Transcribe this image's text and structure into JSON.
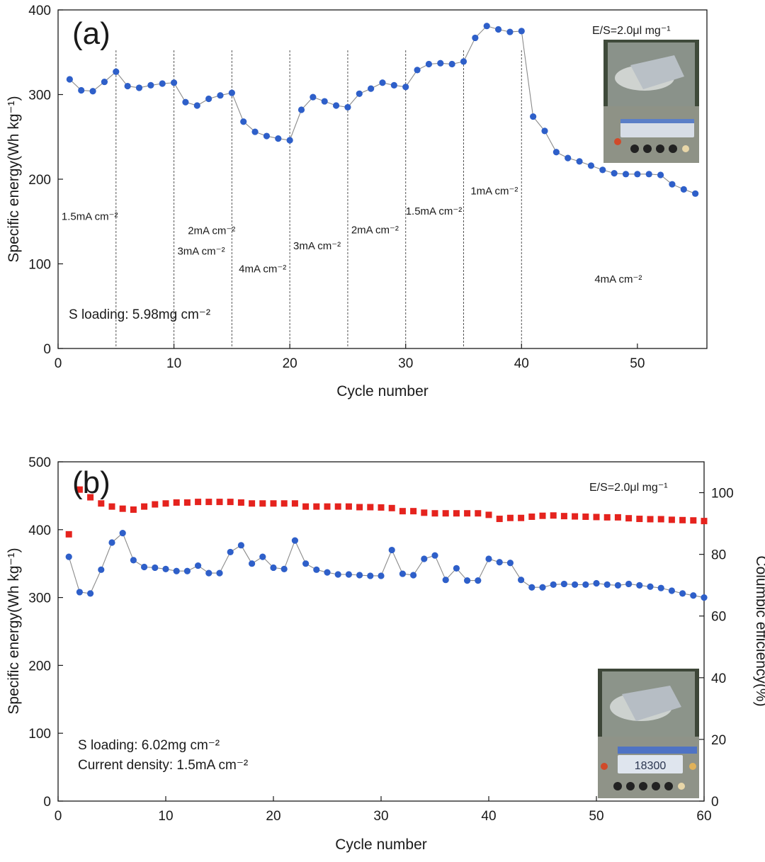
{
  "figure": {
    "panels": [
      {
        "panel_label": "(a)",
        "es_label": "E/S=2.0μl mg⁻¹",
        "loading_label": "S loading: 5.98mg cm⁻²",
        "photo_icon": "balance-scale-photo-icon",
        "rate_labels": [
          {
            "text": "1.5mA cm⁻²",
            "cycle": 0.3,
            "energy": 152
          },
          {
            "text": "2mA cm⁻²",
            "cycle": 11.2,
            "energy": 135
          },
          {
            "text": "3mA cm⁻²",
            "cycle": 10.3,
            "energy": 111
          },
          {
            "text": "4mA cm⁻²",
            "cycle": 15.6,
            "energy": 90
          },
          {
            "text": "3mA cm⁻²",
            "cycle": 20.3,
            "energy": 117
          },
          {
            "text": "2mA cm⁻²",
            "cycle": 25.3,
            "energy": 136
          },
          {
            "text": "1.5mA cm⁻²",
            "cycle": 30.0,
            "energy": 158
          },
          {
            "text": "1mA cm⁻²",
            "cycle": 35.6,
            "energy": 182
          },
          {
            "text": "4mA cm⁻²",
            "cycle": 46.3,
            "energy": 78
          }
        ]
      },
      {
        "panel_label": "(b)",
        "es_label": "E/S=2.0μl mg⁻¹",
        "loading_label": "S loading: 6.02mg cm⁻²",
        "current_label": "Current density: 1.5mA cm⁻²",
        "photo_icon": "balance-scale-photo-icon",
        "photo_readout": "18300"
      }
    ]
  },
  "chart_data": [
    {
      "type": "line",
      "xlabel": "Cycle number",
      "ylabel": "Specific energy(Wh kg⁻¹)",
      "xlim": [
        0,
        56
      ],
      "ylim": [
        0,
        400
      ],
      "xticks": [
        0,
        10,
        20,
        30,
        40,
        50
      ],
      "yticks": [
        0,
        100,
        200,
        300,
        400
      ],
      "rate_change_cycles": [
        5,
        10,
        15,
        20,
        25,
        30,
        35,
        40
      ],
      "color": "#2e5fc9",
      "series": [
        {
          "x": [
            1,
            2,
            3,
            4,
            5,
            6,
            7,
            8,
            9,
            10,
            11,
            12,
            13,
            14,
            15,
            16,
            17,
            18,
            19,
            20,
            21,
            22,
            23,
            24,
            25,
            26,
            27,
            28,
            29,
            30,
            31,
            32,
            33,
            34,
            35,
            36,
            37,
            38,
            39,
            40,
            41,
            42,
            43,
            44,
            45,
            46,
            47,
            48,
            49,
            50,
            51,
            52,
            53,
            54,
            55
          ],
          "values": [
            318,
            305,
            304,
            315,
            327,
            310,
            308,
            311,
            313,
            314,
            291,
            287,
            295,
            299,
            302,
            268,
            256,
            251,
            248,
            246,
            282,
            297,
            292,
            287,
            285,
            301,
            307,
            314,
            311,
            309,
            329,
            336,
            337,
            336,
            339,
            367,
            381,
            377,
            374,
            375,
            274,
            257,
            232,
            225,
            221,
            216,
            211,
            207,
            206,
            206,
            206,
            205,
            194,
            188,
            183
          ]
        }
      ]
    },
    {
      "type": "line",
      "xlabel": "Cycle number",
      "ylabel": "Specific energy(Wh kg⁻¹)",
      "y2label": "Columbic efficiency(%)",
      "xlim": [
        0,
        60
      ],
      "ylim": [
        0,
        500
      ],
      "y2lim": [
        0,
        110
      ],
      "xticks": [
        0,
        10,
        20,
        30,
        40,
        50,
        60
      ],
      "yticks": [
        0,
        100,
        200,
        300,
        400,
        500
      ],
      "y2ticks": [
        0,
        20,
        40,
        60,
        80,
        100
      ],
      "series": [
        {
          "axis": "left",
          "marker": "circle",
          "color": "#2e5fc9",
          "x": [
            1,
            2,
            3,
            4,
            5,
            6,
            7,
            8,
            9,
            10,
            11,
            12,
            13,
            14,
            15,
            16,
            17,
            18,
            19,
            20,
            21,
            22,
            23,
            24,
            25,
            26,
            27,
            28,
            29,
            30,
            31,
            32,
            33,
            34,
            35,
            36,
            37,
            38,
            39,
            40,
            41,
            42,
            43,
            44,
            45,
            46,
            47,
            48,
            49,
            50,
            51,
            52,
            53,
            54,
            55,
            56,
            57,
            58,
            59,
            60
          ],
          "values": [
            360,
            308,
            306,
            341,
            381,
            395,
            355,
            345,
            344,
            342,
            339,
            339,
            347,
            336,
            336,
            367,
            377,
            350,
            360,
            344,
            342,
            384,
            350,
            341,
            337,
            334,
            334,
            333,
            332,
            332,
            370,
            335,
            333,
            357,
            362,
            326,
            343,
            325,
            325,
            357,
            352,
            351,
            326,
            315,
            315,
            319,
            320,
            319,
            319,
            321,
            319,
            318,
            320,
            318,
            316,
            314,
            310,
            306,
            303,
            300
          ]
        },
        {
          "axis": "right",
          "marker": "square",
          "color": "#e5231e",
          "x": [
            1,
            2,
            3,
            4,
            5,
            6,
            7,
            8,
            9,
            10,
            11,
            12,
            13,
            14,
            15,
            16,
            17,
            18,
            19,
            20,
            21,
            22,
            23,
            24,
            25,
            26,
            27,
            28,
            29,
            30,
            31,
            32,
            33,
            34,
            35,
            36,
            37,
            38,
            39,
            40,
            41,
            42,
            43,
            44,
            45,
            46,
            47,
            48,
            49,
            50,
            51,
            52,
            53,
            54,
            55,
            56,
            57,
            58,
            59,
            60
          ],
          "values": [
            86.5,
            101,
            98.5,
            96.5,
            95.5,
            94.8,
            94.5,
            95.5,
            96.2,
            96.5,
            96.8,
            96.8,
            97,
            97,
            97,
            97,
            96.8,
            96.5,
            96.5,
            96.5,
            96.5,
            96.5,
            95.5,
            95.5,
            95.5,
            95.5,
            95.5,
            95.3,
            95.3,
            95.2,
            95,
            94,
            94,
            93.5,
            93.3,
            93.3,
            93.3,
            93.3,
            93.3,
            92.8,
            91.5,
            91.8,
            91.8,
            92.2,
            92.5,
            92.6,
            92.4,
            92.3,
            92.2,
            92.1,
            92,
            92,
            91.7,
            91.5,
            91.4,
            91.4,
            91.2,
            91.1,
            91,
            90.8
          ]
        }
      ]
    }
  ]
}
